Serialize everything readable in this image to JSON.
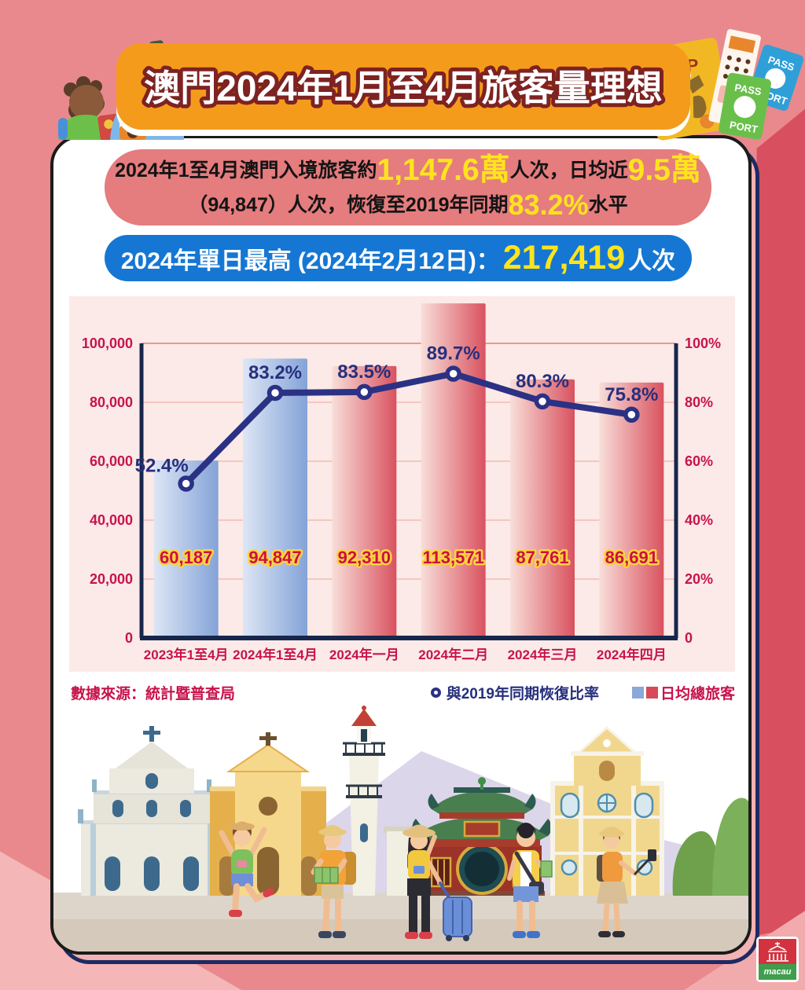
{
  "page": {
    "background": "#e9898d",
    "accent_dark_red": "#d8505f",
    "accent_light_pink": "#f3b2b3"
  },
  "header": {
    "title": "澳門2024年1月至4月旅客量理想",
    "banner_color": "#f59b1b"
  },
  "summary": {
    "text_1": "2024年1至4月澳門入境旅客約",
    "highlight_1": "1,147.6萬",
    "text_2": "人次，日均近",
    "highlight_2": "9.5萬",
    "text_3": "（94,847）人次，恢復至2019年同期",
    "highlight_3": "83.2%",
    "text_4": "水平"
  },
  "peak": {
    "label": "2024年單日最高 (2024年2月12日)：",
    "value": "217,419",
    "suffix": "人次"
  },
  "chart_data": {
    "type": "bar",
    "categories": [
      "2023年1至4月",
      "2024年1至4月",
      "2024年一月",
      "2024年二月",
      "2024年三月",
      "2024年四月"
    ],
    "series": [
      {
        "name": "日均總旅客",
        "type": "bar",
        "values": [
          60187,
          94847,
          92310,
          113571,
          87761,
          86691
        ],
        "labels": [
          "60,187",
          "94,847",
          "92,310",
          "113,571",
          "87,761",
          "86,691"
        ],
        "bar_styles": [
          "blue",
          "blue",
          "red",
          "red",
          "red",
          "red"
        ]
      },
      {
        "name": "與2019年同期恢復比率",
        "type": "line",
        "values": [
          52.4,
          83.2,
          83.5,
          89.7,
          80.3,
          75.8
        ],
        "labels": [
          "52.4%",
          "83.2%",
          "83.5%",
          "89.7%",
          "80.3%",
          "75.8%"
        ]
      }
    ],
    "left_axis": {
      "min": 0,
      "max": 100000,
      "ticks": [
        "0",
        "20,000",
        "40,000",
        "60,000",
        "80,000",
        "100,000"
      ]
    },
    "right_axis": {
      "min": 0,
      "max": 100,
      "ticks": [
        "0",
        "20%",
        "40%",
        "60%",
        "80%",
        "100%"
      ]
    },
    "grid": true,
    "legend_position": "bottom-right",
    "colors": {
      "panel_bg": "#fbeae7",
      "grid_line": "#f5c6c1",
      "grid_top": "#ee9790",
      "axis": "#17264d",
      "tick_label": "#c8134b",
      "bar_blue_start": "#dde6f5",
      "bar_blue_end": "#84a3d8",
      "bar_red_start": "#f8ded9",
      "bar_red_end": "#d9525f",
      "line": "#2b3184",
      "pct_label": "#272f7d",
      "value_label_fill": "#cb1045",
      "value_label_stroke": "#ffd23f"
    }
  },
  "footer": {
    "source": "數據來源：統計暨普查局",
    "legend_line_label": "與2019年同期恢復比率",
    "legend_bar_label": "日均總旅客",
    "legend_bar_blue": "#8ba8da",
    "legend_bar_red": "#d8495a"
  },
  "logo": {
    "text": "macau"
  },
  "decor": {
    "map_label": "MAP",
    "passport_word_top": "PASS",
    "passport_word_bottom": "PORT"
  }
}
